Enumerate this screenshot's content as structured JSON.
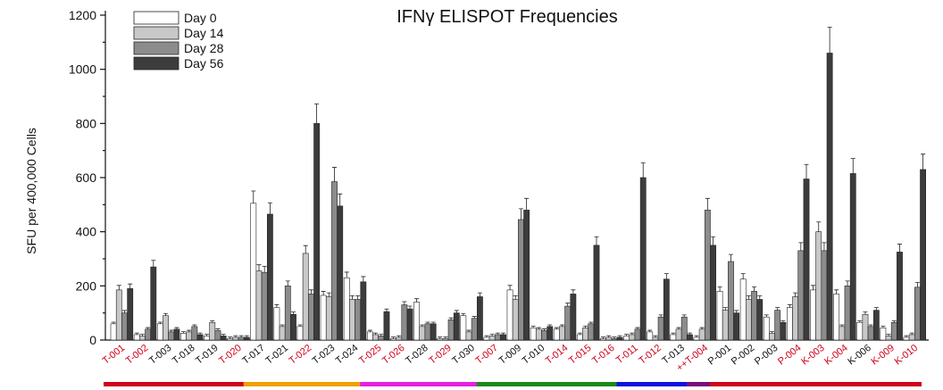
{
  "chart_data": {
    "type": "bar",
    "title": "IFNγ ELISPOT Frequencies",
    "ylabel": "SFU per 400,000 Cells",
    "xlabel": "",
    "ylim": [
      0,
      1200
    ],
    "yticks": [
      0,
      200,
      400,
      600,
      800,
      1000,
      1200
    ],
    "legend_position": "top-left",
    "colors": {
      "Day 0": "#ffffff",
      "Day 14": "#c8c8c8",
      "Day 28": "#8c8c8c",
      "Day 56": "#3c3c3c"
    },
    "categories": [
      "T-001",
      "T-002",
      "T-003",
      "T-018",
      "T-019",
      "T-020",
      "T-017",
      "T-021",
      "T-022",
      "T-023",
      "T-024",
      "T-025",
      "T-026",
      "T-028",
      "T-029",
      "T-030",
      "T-007",
      "T-009",
      "T-010",
      "T-014",
      "T-015",
      "T-016",
      "T-011",
      "T-012",
      "T-013",
      "T-004",
      "P-001",
      "P-002",
      "P-003",
      "P-004",
      "K-003",
      "K-004",
      "K-006",
      "K-009",
      "K-010"
    ],
    "label_prefixes": [
      "",
      "",
      "",
      "",
      "",
      "",
      "",
      "",
      "",
      "",
      "",
      "",
      "",
      "",
      "",
      "",
      "",
      "",
      "",
      "",
      "",
      "",
      "",
      "",
      "",
      "++",
      "",
      "",
      "",
      "",
      "",
      "",
      "",
      "",
      ""
    ],
    "category_colors": [
      "#d0021b",
      "#d0021b",
      "#111111",
      "#111111",
      "#111111",
      "#d0021b",
      "#111111",
      "#111111",
      "#d0021b",
      "#111111",
      "#111111",
      "#d0021b",
      "#d0021b",
      "#111111",
      "#d0021b",
      "#111111",
      "#d0021b",
      "#111111",
      "#111111",
      "#d0021b",
      "#d0021b",
      "#d0021b",
      "#d0021b",
      "#d0021b",
      "#111111",
      "#d0021b",
      "#111111",
      "#111111",
      "#111111",
      "#d0021b",
      "#d0021b",
      "#d0021b",
      "#111111",
      "#d0021b",
      "#d0021b"
    ],
    "series": [
      {
        "name": "Day 0",
        "values": [
          60,
          20,
          60,
          25,
          15,
          5,
          505,
          120,
          50,
          165,
          230,
          30,
          5,
          140,
          5,
          90,
          10,
          185,
          45,
          40,
          20,
          5,
          15,
          30,
          20,
          10,
          180,
          225,
          85,
          120,
          185,
          170,
          65,
          45,
          10
        ]
      },
      {
        "name": "Day 14",
        "values": [
          185,
          15,
          90,
          30,
          65,
          10,
          255,
          50,
          320,
          160,
          150,
          20,
          10,
          50,
          5,
          30,
          15,
          150,
          40,
          50,
          45,
          10,
          20,
          10,
          40,
          40,
          110,
          150,
          25,
          160,
          400,
          50,
          95,
          15,
          20
        ]
      },
      {
        "name": "Day 28",
        "values": [
          100,
          40,
          30,
          50,
          35,
          10,
          250,
          200,
          170,
          585,
          150,
          15,
          130,
          60,
          75,
          80,
          20,
          445,
          35,
          125,
          60,
          5,
          40,
          85,
          85,
          480,
          290,
          180,
          110,
          330,
          330,
          200,
          50,
          65,
          195
        ]
      },
      {
        "name": "Day 56",
        "values": [
          190,
          270,
          40,
          20,
          15,
          10,
          465,
          95,
          800,
          495,
          215,
          105,
          115,
          60,
          100,
          160,
          20,
          480,
          50,
          170,
          350,
          10,
          600,
          225,
          20,
          350,
          100,
          150,
          65,
          595,
          1060,
          615,
          110,
          325,
          630
        ]
      }
    ],
    "group_bars": [
      {
        "color": "#d0021b",
        "span": [
          0,
          5
        ]
      },
      {
        "color": "#f0a000",
        "span": [
          6,
          10
        ]
      },
      {
        "color": "#e51fe0",
        "span": [
          11,
          15
        ]
      },
      {
        "color": "#1a8a1a",
        "span": [
          16,
          21
        ]
      },
      {
        "color": "#1010e0",
        "span": [
          22,
          24
        ]
      },
      {
        "color": "#7a0a7a",
        "span": [
          25,
          25
        ]
      },
      {
        "color": "#d0021b",
        "span": [
          26,
          34
        ]
      }
    ]
  }
}
